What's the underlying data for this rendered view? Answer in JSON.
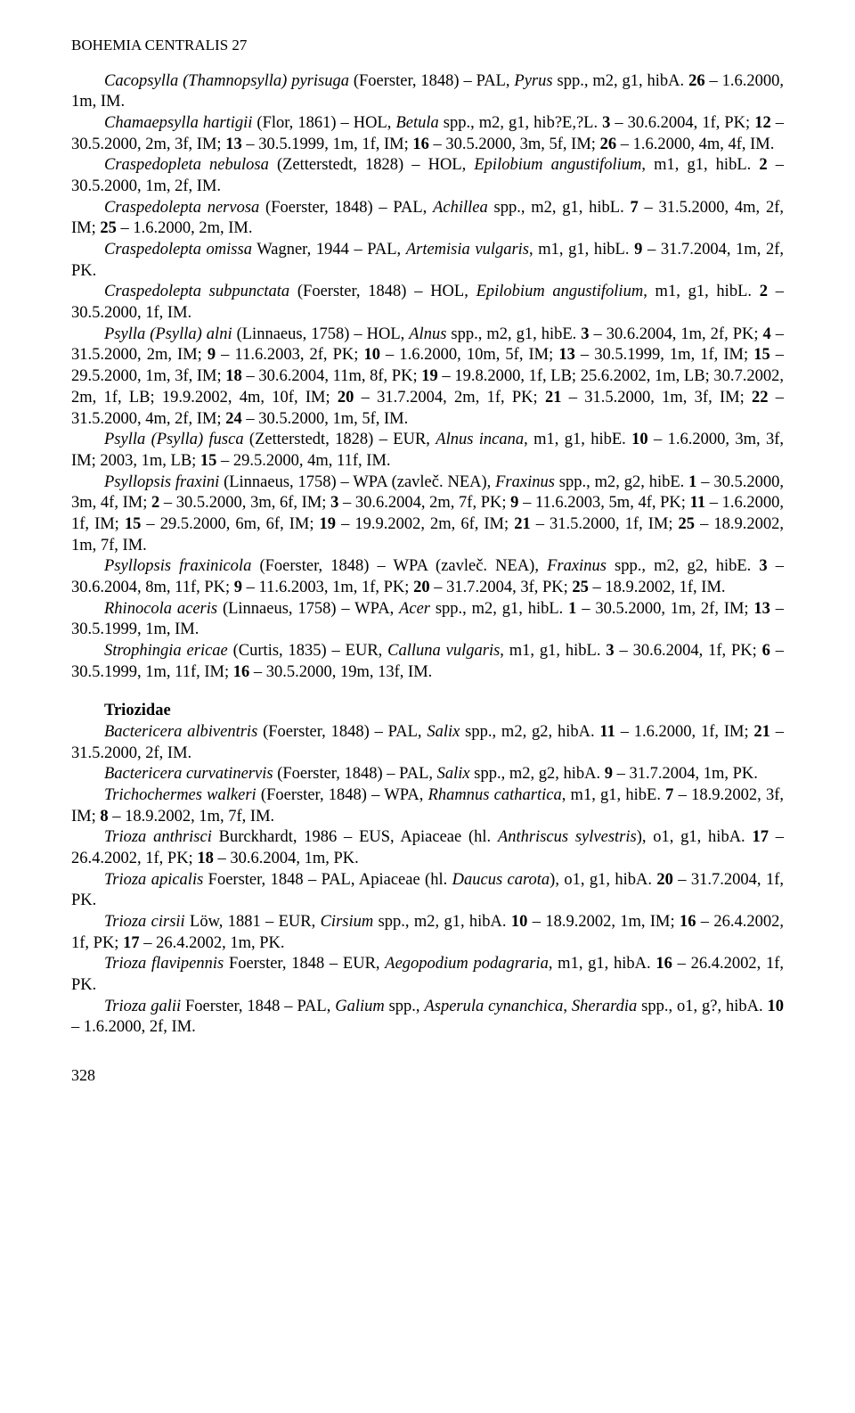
{
  "header": "BOHEMIA CENTRALIS 27",
  "entries": [
    {
      "html": "<span class='italic'>Cacopsylla (Thamnopsylla) pyrisuga</span> (Foerster, 1848) – PAL, <span class='italic'>Pyrus</span> spp., m2, g1, hibA. <b>26</b> – 1.6.2000, 1m, IM."
    },
    {
      "html": "<span class='italic'>Chamaepsylla hartigii</span> (Flor, 1861) – HOL, <span class='italic'>Betula</span> spp., m2, g1, hib?E,?L. <b>3</b> – 30.6.2004, 1f, PK; <b>12</b> – 30.5.2000, 2m, 3f, IM; <b>13</b> – 30.5.1999, 1m, 1f, IM; <b>16</b> – 30.5.2000, 3m, 5f, IM; <b>26</b> – 1.6.2000, 4m, 4f, IM."
    },
    {
      "html": "<span class='italic'>Craspedopleta nebulosa</span> (Zetterstedt, 1828) – HOL, <span class='italic'>Epilobium angustifolium</span>, m1, g1, hibL. <b>2</b> – 30.5.2000, 1m, 2f, IM."
    },
    {
      "html": "<span class='italic'>Craspedolepta nervosa</span> (Foerster, 1848) – PAL, <span class='italic'>Achillea</span> spp., m2, g1, hibL. <b>7</b> – 31.5.2000, 4m, 2f, IM; <b>25</b> – 1.6.2000, 2m, IM."
    },
    {
      "html": "<span class='italic'>Craspedolepta omissa</span> Wagner, 1944 – PAL, <span class='italic'>Artemisia vulgaris</span>, m1, g1, hibL. <b>9</b> – 31.7.2004, 1m, 2f, PK."
    },
    {
      "html": "<span class='italic'>Craspedolepta subpunctata</span> (Foerster, 1848) – HOL, <span class='italic'>Epilobium angustifolium</span>, m1, g1, hibL. <b>2</b> – 30.5.2000, 1f, IM."
    },
    {
      "html": "<span class='italic'>Psylla (Psylla) alni</span> (Linnaeus, 1758) – HOL, <span class='italic'>Alnus</span> spp., m2, g1, hibE. <b>3</b> – 30.6.2004, 1m, 2f, PK; <b>4</b> – 31.5.2000, 2m, IM; <b>9</b> – 11.6.2003, 2f, PK; <b>10</b> – 1.6.2000, 10m, 5f, IM; <b>13</b> – 30.5.1999, 1m, 1f, IM; <b>15</b> – 29.5.2000, 1m, 3f, IM; <b>18</b> – 30.6.2004, 11m, 8f, PK; <b>19</b> – 19.8.2000, 1f, LB; 25.6.2002, 1m, LB; 30.7.2002, 2m, 1f, LB; 19.9.2002, 4m, 10f, IM; <b>20</b> – 31.7.2004, 2m, 1f, PK; <b>21</b> – 31.5.2000, 1m, 3f, IM; <b>22</b> – 31.5.2000, 4m, 2f, IM; <b>24</b> – 30.5.2000, 1m, 5f, IM."
    },
    {
      "html": "<span class='italic'>Psylla (Psylla) fusca</span> (Zetterstedt, 1828) – EUR, <span class='italic'>Alnus incana</span>, m1, g1, hibE. <b>10</b> – 1.6.2000, 3m, 3f, IM; 2003, 1m, LB; <b>15</b> – 29.5.2000, 4m, 11f, IM."
    },
    {
      "html": "<span class='italic'>Psyllopsis fraxini</span> (Linnaeus, 1758) – WPA (zavleč. NEA), <span class='italic'>Fraxinus</span> spp., m2, g2, hibE. <b>1</b> – 30.5.2000, 3m, 4f, IM; <b>2</b> – 30.5.2000, 3m, 6f, IM; <b>3</b> – 30.6.2004, 2m, 7f, PK; <b>9</b> – 11.6.2003, 5m, 4f, PK; <b>11</b> – 1.6.2000, 1f, IM; <b>15</b> – 29.5.2000, 6m, 6f, IM; <b>19</b> – 19.9.2002, 2m, 6f, IM; <b>21</b> – 31.5.2000, 1f, IM; <b>25</b> – 18.9.2002, 1m, 7f, IM."
    },
    {
      "html": "<span class='italic'>Psyllopsis fraxinicola</span> (Foerster, 1848) – WPA (zavleč. NEA), <span class='italic'>Fraxinus</span> spp., m2, g2, hibE. <b>3</b> – 30.6.2004, 8m, 11f, PK; <b>9</b> – 11.6.2003, 1m, 1f, PK; <b>20</b> – 31.7.2004, 3f, PK; <b>25</b> – 18.9.2002, 1f, IM."
    },
    {
      "html": "<span class='italic'>Rhinocola aceris</span> (Linnaeus, 1758) – WPA, <span class='italic'>Acer</span> spp., m2, g1, hibL. <b>1</b> – 30.5.2000, 1m, 2f, IM; <b>13</b> – 30.5.1999, 1m, IM."
    },
    {
      "html": "<span class='italic'>Strophingia ericae</span> (Curtis, 1835) – EUR, <span class='italic'>Calluna vulgaris</span>, m1, g1, hibL. <b>3</b> – 30.6.2004, 1f, PK; <b>6</b> – 30.5.1999, 1m, 11f, IM; <b>16</b> – 30.5.2000, 19m, 13f, IM."
    }
  ],
  "family_heading": "Triozidae",
  "entries2": [
    {
      "html": "<span class='italic'>Bactericera albiventris</span> (Foerster, 1848) – PAL, <span class='italic'>Salix</span> spp., m2, g2, hibA. <b>11</b> – 1.6.2000, 1f, IM; <b>21</b> – 31.5.2000, 2f, IM."
    },
    {
      "html": "<span class='italic'>Bactericera curvatinervis</span> (Foerster, 1848) – PAL, <span class='italic'>Salix</span> spp., m2, g2, hibA. <b>9</b> – 31.7.2004, 1m, PK."
    },
    {
      "html": "<span class='italic'>Trichochermes walkeri</span> (Foerster, 1848) – WPA, <span class='italic'>Rhamnus cathartica</span>, m1, g1, hibE. <b>7</b> – 18.9.2002, 3f, IM; <b>8</b> – 18.9.2002, 1m, 7f, IM."
    },
    {
      "html": "<span class='italic'>Trioza anthrisci</span> Burckhardt, 1986 – EUS, Apiaceae (hl. <span class='italic'>Anthriscus sylvestris</span>), o1, g1, hibA. <b>17</b> – 26.4.2002, 1f, PK; <b>18</b> – 30.6.2004, 1m, PK."
    },
    {
      "html": "<span class='italic'>Trioza apicalis</span> Foerster, 1848 – PAL, Apiaceae (hl. <span class='italic'>Daucus carota</span>), o1, g1, hibA. <b>20</b> – 31.7.2004, 1f, PK."
    },
    {
      "html": "<span class='italic'>Trioza cirsii</span> Löw, 1881 – EUR, <span class='italic'>Cirsium</span> spp., m2, g1, hibA. <b>10</b> – 18.9.2002, 1m, IM; <b>16</b> – 26.4.2002, 1f, PK; <b>17</b> – 26.4.2002, 1m, PK."
    },
    {
      "html": "<span class='italic'>Trioza flavipennis</span> Foerster, 1848 – EUR, <span class='italic'>Aegopodium podagraria</span>, m1, g1, hibA. <b>16</b> – 26.4.2002, 1f, PK."
    },
    {
      "html": "<span class='italic'>Trioza galii</span> Foerster, 1848 – PAL, <span class='italic'>Galium</span> spp., <span class='italic'>Asperula cynanchica</span>, <span class='italic'>Sherardia</span> spp., o1, g?, hibA. <b>10</b> – 1.6.2000, 2f, IM."
    }
  ],
  "page_number": "328"
}
